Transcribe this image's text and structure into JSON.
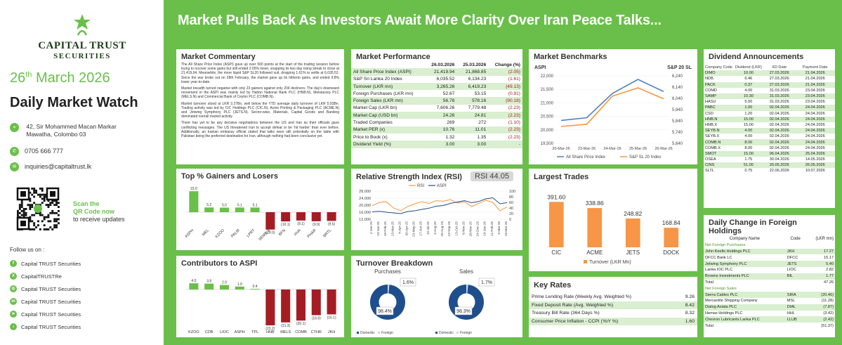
{
  "brand": {
    "name_line1": "CAPITAL TRUST",
    "name_line2": "SECURITIES"
  },
  "date": {
    "day": "26",
    "suffix": "th",
    "rest": " March 2026"
  },
  "report_title": "Daily Market Watch",
  "contact": {
    "address1": "42, Sir Mohammed Macan Markar",
    "address2": "Mawatha, Colombo 03",
    "phone": "0705 666 777",
    "email": "inquiries@capitaltrust.lk"
  },
  "qr": {
    "line1": "Scan the",
    "line2": "QR Code now",
    "line3": "to receive updates"
  },
  "follow_label": "Follow us on :",
  "socials": [
    {
      "label": "Capital TRUST Securities",
      "icon": "facebook-icon",
      "glyph": "f"
    },
    {
      "label": "CapitalTRUSTRe",
      "icon": "x-icon",
      "glyph": "X"
    },
    {
      "label": "Capital TRUST Securities",
      "icon": "instagram-icon",
      "glyph": "◎"
    },
    {
      "label": "Capital TRUST Securities",
      "icon": "linkedin-icon",
      "glyph": "in"
    },
    {
      "label": "Capital TRUST Securities",
      "icon": "telegram-icon",
      "glyph": "➤"
    },
    {
      "label": "Capital TRUST Securities",
      "icon": "tiktok-icon",
      "glyph": "♪"
    }
  ],
  "colors": {
    "green": "#6abf4b",
    "red": "#a51d24",
    "orange": "#f79646",
    "blue": "#4f81bd",
    "navy": "#1f4e8c",
    "light_green": "#d9efd0"
  },
  "headline": "Market Pulls Back As Investors Await More Clarity Over Iran Peace Talks...",
  "commentary": {
    "title": "Market Commentary",
    "paragraphs": [
      "The All Share Price Index (ASPI) gave up over 500 points at the start of the trading session before trying to recover some gains but still ended 2.05% lower, snapping its two day rising streak to close at 21,419.94. Meanwhile, the more liquid S&P SL20 followed suit, dropping 1.61% to settle at 6,035.52. Since the war broke out on 28th February, the market gave up its hitherto gains, and ended 9.8% lower year-to-date.",
      "Market breadth turned negative with only 23 gainers against only 204 decliners. The day's downward movement in the ASPI was mainly led by Hatton National Bank PLC (HNB.N), Melstacorp PLC (MELS.N) and Commercial Bank of Ceylon PLC (COMB.N).",
      "Market turnover stood at LKR 3.27Bn, well below the YTD average daily turnover of LKR 5.93Bn. Trading activity was led by CIC Holdings PLC (CIC.N), Acme Printing & Packaging PLC (ACME.N) and Jetwing Symphony PLC (JETS.N). Sector-wise, Materials, Capital Goods and Banking dominated overall market activity.",
      "There has yet to be any decisive negotiations between the US and Iran as their officials gave conflicting messages. The US threatened Iran to accept defeat or be 'hit harder' than ever before. Additionally, an Iranian embassy official stated that talks were still potentially on the table with Pakistan being the preferred destination for Iran, although nothing had been conclusive yet."
    ]
  },
  "performance": {
    "title": "Market Performance",
    "headers": [
      "",
      "26.03.2026",
      "25.03.2026",
      "Change (%)"
    ],
    "rows": [
      [
        "All Share Price Index (ASPI)",
        "21,419.94",
        "21,868.85",
        "(2.05)"
      ],
      [
        "S&P Sri Lanka 20 Index",
        "6,035.52",
        "6,134.23",
        "(1.61)"
      ],
      [
        "Turnover (LKR mn)",
        "3,265.26",
        "6,419.23",
        "(49.13)"
      ],
      [
        "Foreign Purchases (LKR mn)",
        "52.67",
        "53.15",
        "(0.91)"
      ],
      [
        "Foreign Sales (LKR mn)",
        "56.78",
        "578.16",
        "(90.18)"
      ],
      [
        "Market Cap (LKR bn)",
        "7,606.26",
        "7,779.48",
        "(2.23)"
      ],
      [
        "Market Cap (USD bn)",
        "24.26",
        "24.81",
        "(2.23)"
      ],
      [
        "Traded Companies",
        "269",
        "272",
        "(1.10)"
      ],
      [
        "Market PER (x)",
        "10.76",
        "11.01",
        "(2.23)"
      ],
      [
        "Price to Book (x)",
        "1.32",
        "1.35",
        "(2.23)"
      ],
      [
        "Dividend Yield (%)",
        "3.00",
        "3.00",
        "-"
      ]
    ]
  },
  "benchmarks": {
    "title": "Market Benchmarks",
    "chart_data": {
      "type": "line",
      "x": [
        "20-Mar-26",
        "23-Mar-26",
        "24-Mar-26",
        "25-Mar-26",
        "26-Mar-26"
      ],
      "series": [
        {
          "name": "All Share Price Index",
          "axis": "left",
          "color": "#4f81bd",
          "values": [
            20350,
            20450,
            21350,
            21869,
            21420
          ]
        },
        {
          "name": "S&P SL 20 Index",
          "axis": "right",
          "color": "#f79646",
          "values": [
            5790,
            5810,
            6060,
            6134,
            6036
          ]
        }
      ],
      "left_label": "ASPI",
      "right_label": "S&P 20 SL",
      "ylim_left": [
        19500,
        22000
      ],
      "ylim_right": [
        5640,
        6240
      ],
      "yticks_left": [
        "22,000",
        "21,500",
        "21,000",
        "20,500",
        "20,000",
        "19,500"
      ],
      "yticks_right": [
        "6,240",
        "6,140",
        "6,040",
        "5,940",
        "5,840",
        "5,740",
        "5,640"
      ]
    }
  },
  "dividends": {
    "title": "Dividend Announcements",
    "headers": [
      "Company Code",
      "Dividend (LKR)",
      "XD Date",
      "Payment Date"
    ],
    "rows": [
      [
        "DIMO",
        "10.00",
        "27.03.2026",
        "21.04.2026"
      ],
      [
        "NDB",
        "6.46",
        "27.03.2026",
        "21.04.2026"
      ],
      [
        "PACK",
        "0.37",
        "27.03.2026",
        "21.04.2026"
      ],
      [
        "COMD",
        "4.00",
        "31.03.2026",
        "23.04.2026"
      ],
      [
        "SAMP",
        "10.30",
        "31.03.2026",
        "23.04.2026"
      ],
      [
        "HASU",
        "5.00",
        "31.03.2026",
        "23.04.2026"
      ],
      [
        "PABC",
        "1.00",
        "02.04.2026",
        "24.04.2026"
      ],
      [
        "CSD",
        "1.20",
        "02.04.2026",
        "24.04.2026"
      ],
      [
        "HNB.N",
        "15.00",
        "02.04.2026",
        "24.04.2026"
      ],
      [
        "HNB.X",
        "15.00",
        "02.04.2026",
        "24.04.2026"
      ],
      [
        "SEYB.N",
        "4.00",
        "02.04.2026",
        "24.04.2026"
      ],
      [
        "SEYB.X",
        "4.00",
        "02.04.2026",
        "24.04.2026"
      ],
      [
        "COMB.N",
        "8.00",
        "02.04.2026",
        "24.04.2026"
      ],
      [
        "COMB.X",
        "8.00",
        "02.04.2026",
        "24.04.2026"
      ],
      [
        "SMOT",
        "15.00",
        "06.04.2026",
        "25.04.2026"
      ],
      [
        "OSEA",
        "1.75",
        "30.04.2026",
        "14.05.2026"
      ],
      [
        "CINS",
        "51.00",
        "20.05.2026",
        "26.05.2026"
      ],
      [
        "SLTL",
        "0.75",
        "22.06.2026",
        "10.07.2026"
      ]
    ]
  },
  "gainers": {
    "title": "Top % Gainers and Losers",
    "chart_data": {
      "type": "bar",
      "categories": [
        "ASPH",
        "MEL",
        "KZOO",
        "PALM",
        "LPRT",
        "SEMB.X",
        "BFN",
        "HVA",
        "PHAR",
        "BRTL"
      ],
      "values": [
        23.0,
        5.2,
        5.0,
        5.1,
        5.1,
        -19.0,
        -10.1,
        -9.1,
        -9.9,
        -9.5
      ],
      "labels": [
        "23.0",
        "5.2",
        "5.0",
        "5.1",
        "5.1",
        "(19.0)",
        "(10.1)",
        "(9.1)",
        "(9.9)",
        "(9.5)"
      ]
    }
  },
  "rsi": {
    "title": "Relative Strength Index (RSI)",
    "badge_label": "RSI",
    "badge_value": "44.05",
    "legend": [
      "RSI",
      "ASPI"
    ],
    "chart_data": {
      "type": "line",
      "x": [
        "2-Jan-25",
        "24-Jan-25",
        "18-Feb-25",
        "13-Mar-25",
        "4-Apr-25",
        "30-Apr-25",
        "23-May-25",
        "17-Jun-25",
        "10-Jul-25",
        "4-Aug-25",
        "26-Aug-25",
        "19-Sep-25",
        "13-Oct-25",
        "6-Nov-25",
        "28-Nov-25",
        "24-Dec-25",
        "19-Jan-26",
        "11-Feb-26",
        "5-Mar-26",
        "18-Mar-26"
      ],
      "series": [
        {
          "name": "RSI",
          "axis": "right",
          "color": "#f79646",
          "values": [
            48,
            60,
            62,
            40,
            30,
            45,
            55,
            62,
            56,
            66,
            64,
            70,
            58,
            62,
            45,
            56,
            67,
            60,
            30,
            44
          ]
        },
        {
          "name": "ASPI",
          "axis": "left",
          "color": "#1f4e8c",
          "values": [
            16200,
            16500,
            16000,
            15600,
            15200,
            16400,
            16800,
            17600,
            18300,
            19400,
            19800,
            21000,
            21800,
            22600,
            21400,
            22100,
            23600,
            24200,
            20800,
            21420
          ]
        }
      ],
      "yticks_left": [
        "28,000",
        "24,000",
        "20,000",
        "16,000",
        "12,000"
      ],
      "yticks_right": [
        "100",
        "80",
        "60",
        "40",
        "20",
        "0"
      ]
    }
  },
  "largest": {
    "title": "Largest Trades",
    "legend": "Turnover (LKR Mn)",
    "chart_data": {
      "type": "bar",
      "categories": [
        "CIC",
        "ACME",
        "JETS",
        "DOCK"
      ],
      "values": [
        391.6,
        338.86,
        248.82,
        168.84
      ],
      "labels": [
        "391.60",
        "338.86",
        "248.82",
        "168.84"
      ]
    }
  },
  "contributors": {
    "title": "Contributors to ASPI",
    "chart_data": {
      "type": "bar",
      "categories": [
        "KZOO",
        "CDB",
        "LIOC",
        "ASPH",
        "TPL",
        "HNB",
        "MELS",
        "COMB",
        "CTHR",
        "JKH"
      ],
      "values": [
        4.0,
        3.8,
        2.9,
        1.9,
        0.4,
        -23.2,
        -21.3,
        -20.1,
        -16.6,
        -16.1
      ],
      "labels": [
        "4.0",
        "3.8",
        "2.9",
        "1.9",
        "0.4",
        "(23.2)",
        "(21.3)",
        "(20.1)",
        "(16.6)",
        "(16.1)"
      ]
    }
  },
  "turnover": {
    "title": "Turnover Breakdown",
    "chart_data": {
      "type": "pie",
      "charts": [
        {
          "name": "Purchases",
          "domestic": 98.4,
          "foreign": 1.6,
          "domestic_label": "98.4%",
          "foreign_label": "1.6%"
        },
        {
          "name": "Sales",
          "domestic": 98.3,
          "foreign": 1.7,
          "domestic_label": "98.3%",
          "foreign_label": "1.7%"
        }
      ],
      "legend": [
        "Domestic",
        "Foreign"
      ]
    }
  },
  "key_rates": {
    "title": "Key Rates",
    "rows": [
      [
        "Prime Lending Rate (Weekly Avg. Weighted %)",
        "9.26"
      ],
      [
        "Fixed Deposit Rate (Avg. Weighted %)",
        "8.42"
      ],
      [
        "Treasury Bill Rate (364 Days %)",
        "8.32"
      ],
      [
        "Consumer Price Inflation - CCPI (YoY %)",
        "1.60"
      ]
    ]
  },
  "foreign": {
    "title": "Daily Change in Foreign Holdings",
    "headers": [
      "Company Name",
      "Code",
      "(LKR mn)"
    ],
    "purchases_label": "Net Foreign Purchases",
    "purchases": [
      [
        "John Keells Holdings PLC",
        "JKH",
        "17.27"
      ],
      [
        "DFCC Bank LC",
        "DFCC",
        "15.17"
      ],
      [
        "Jetwing Symphony PLC",
        "JETS",
        "5.40"
      ],
      [
        "Lanka IOC PLC",
        "LIOC",
        "2.82"
      ],
      [
        "Browns Investments PLC",
        "BIL",
        "1.77"
      ]
    ],
    "purchases_total": [
      "Total",
      "",
      "47.26"
    ],
    "sales_label": "Net Foreign Sales",
    "sales": [
      [
        "Sierra Cables PLC",
        "SIRA",
        "(20.46)"
      ],
      [
        "Mercantile Shipping Company",
        "MSL",
        "(11.28)"
      ],
      [
        "Dialog Axiata PLC",
        "DIAL",
        "(7.87)"
      ],
      [
        "Hemas Holdings PLC",
        "HHL",
        "(3.42)"
      ],
      [
        "Chevron Lubricants Lanka PLC",
        "LLUB",
        "(2.42)"
      ]
    ],
    "sales_total": [
      "Total",
      "",
      "(51.37)"
    ]
  }
}
